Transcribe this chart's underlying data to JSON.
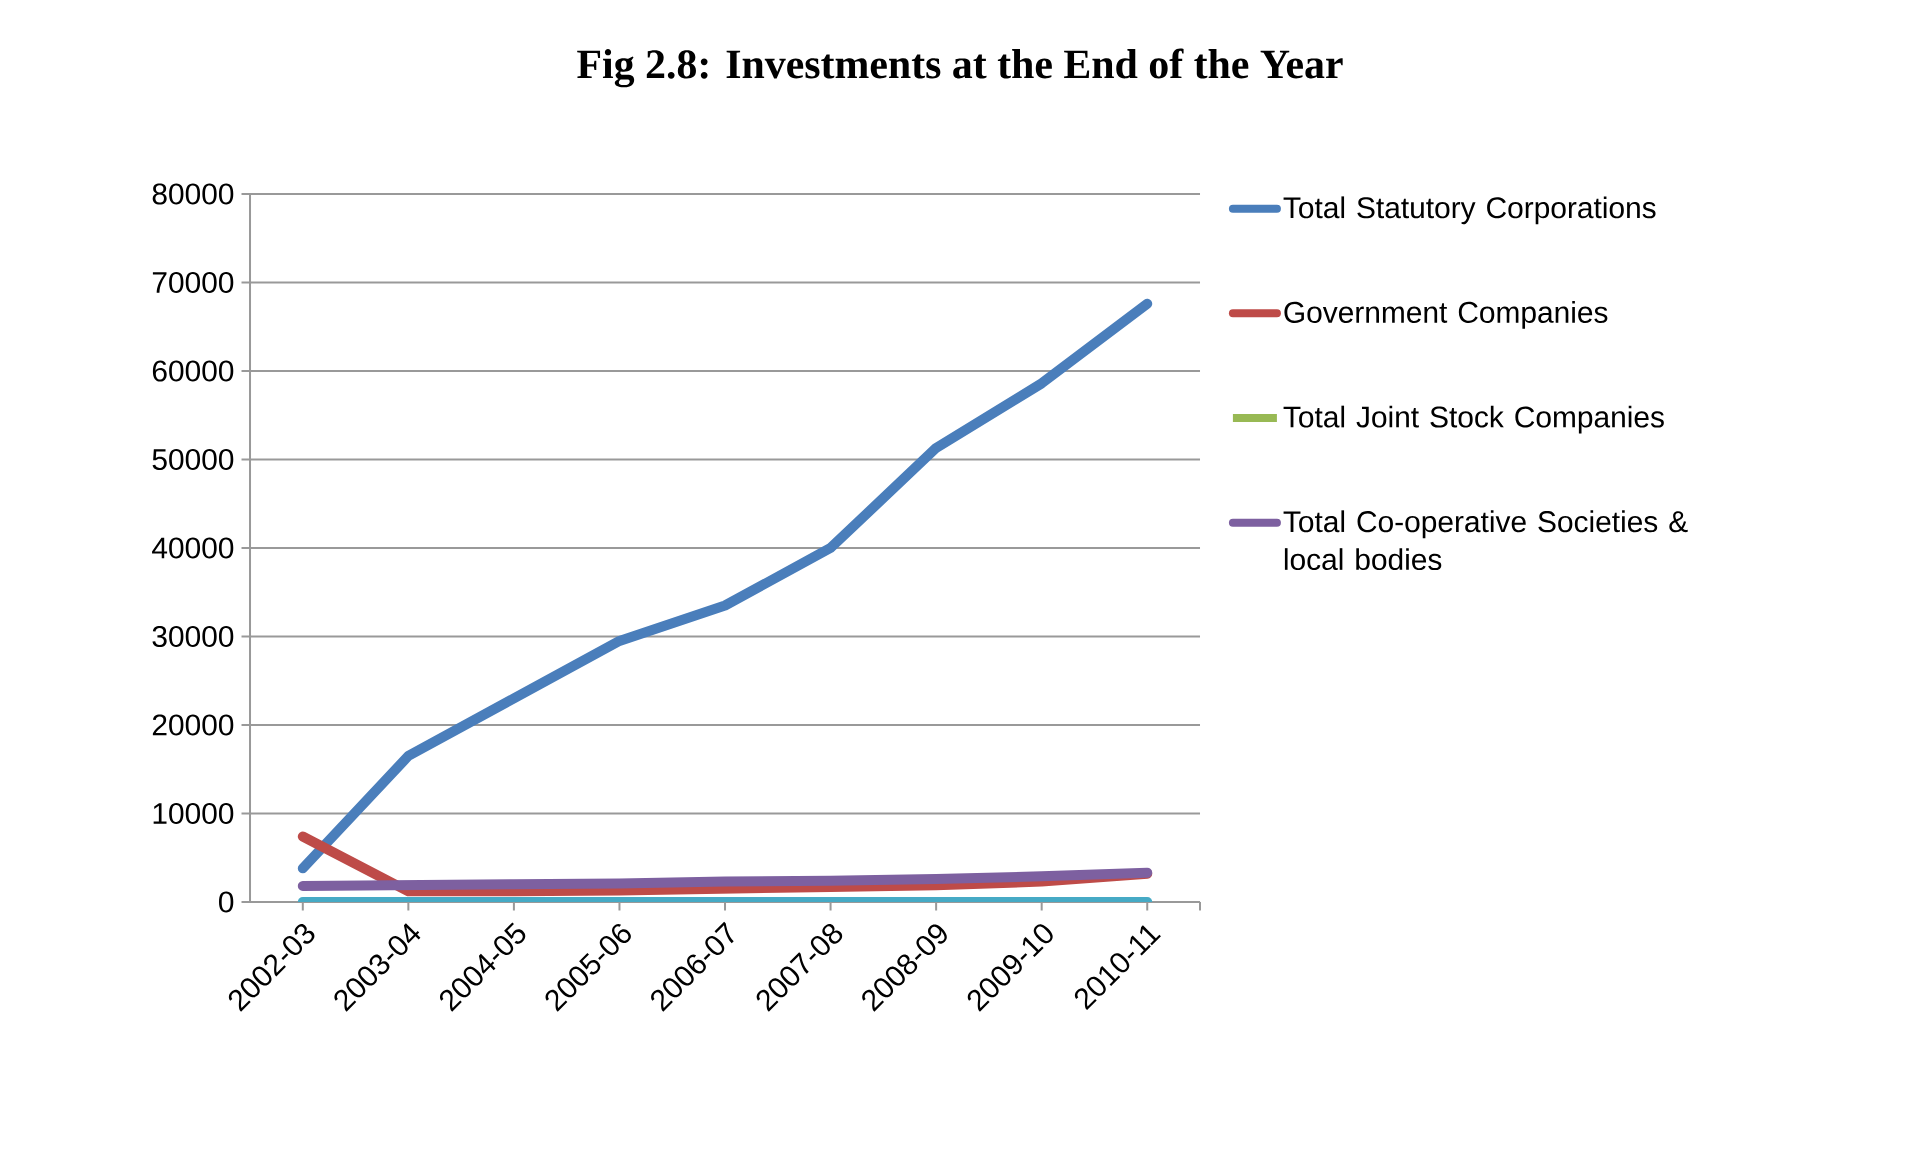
{
  "chart_data": {
    "type": "line",
    "title": "Fig 2.8: Investments at the End of the Year",
    "categories": [
      "2002-03",
      "2003-04",
      "2004-05",
      "2005-06",
      "2006-07",
      "2007-08",
      "2008-09",
      "2009-10",
      "2010-11"
    ],
    "series": [
      {
        "name": "Total Statutory Corporations",
        "color": "#4a7ebb",
        "values": [
          3800,
          16500,
          23000,
          29500,
          33500,
          40000,
          51300,
          58600,
          67600
        ]
      },
      {
        "name": "Government Companies",
        "color": "#be4b48",
        "values": [
          7400,
          1200,
          1200,
          1300,
          1500,
          1700,
          1900,
          2300,
          3200
        ]
      },
      {
        "name": "Total Joint Stock Companies",
        "color": "#98b954",
        "values": [
          null,
          null,
          null,
          null,
          null,
          null,
          null,
          null,
          null
        ]
      },
      {
        "name": "Total Co-operative Societies & local bodies",
        "color": "#7d60a0",
        "values": [
          1800,
          1900,
          2000,
          2100,
          2300,
          2400,
          2600,
          2900,
          3300
        ]
      },
      {
        "color": "#46aac5",
        "values": [
          0,
          0,
          0,
          0,
          0,
          0,
          0,
          0,
          0
        ]
      }
    ],
    "ylim": [
      0,
      80000
    ],
    "yticks": [
      0,
      10000,
      20000,
      30000,
      40000,
      50000,
      60000,
      70000,
      80000
    ],
    "grid": "y",
    "legend": "right",
    "marker": "none",
    "line_style": "solid"
  }
}
